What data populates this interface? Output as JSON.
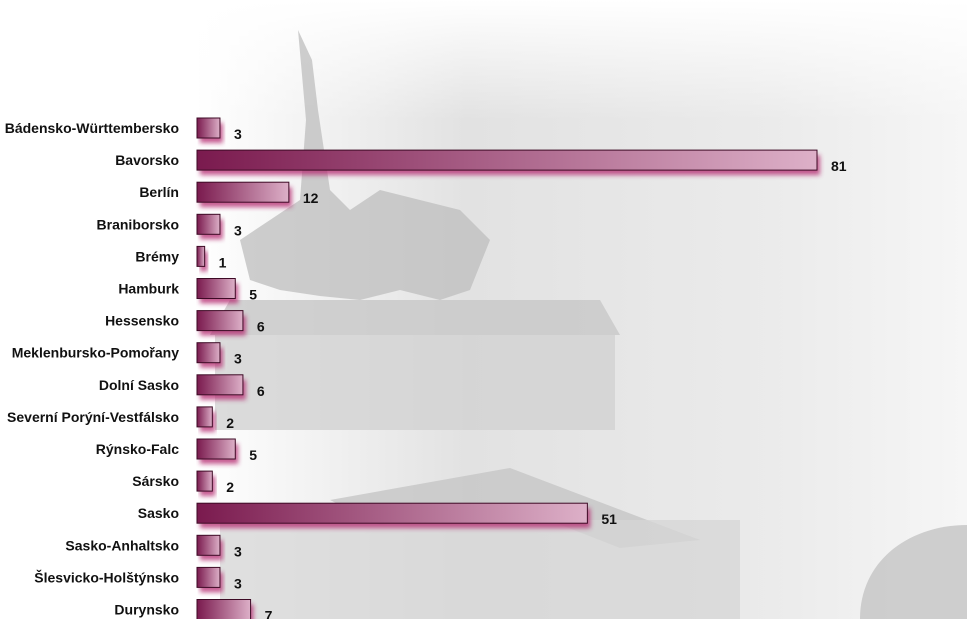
{
  "chart_data": {
    "type": "bar",
    "orientation": "horizontal",
    "categories": [
      "Bádensko-Württembersko",
      "Bavorsko",
      "Berlín",
      "Braniborsko",
      "Brémy",
      "Hamburk",
      "Hessensko",
      "Meklenbursko-Pomořany",
      "Dolní Sasko",
      "Severní Porýní-Vestfálsko",
      "Rýnsko-Falc",
      "Sársko",
      "Sasko",
      "Sasko-Anhaltsko",
      "Šlesvicko-Holštýnsko",
      "Durynsko"
    ],
    "values": [
      3,
      81,
      12,
      3,
      1,
      5,
      6,
      3,
      6,
      2,
      5,
      2,
      51,
      3,
      3,
      7
    ],
    "title": "",
    "xlabel": "",
    "ylabel": "",
    "xlim": [
      0,
      81
    ],
    "grid": false,
    "legend": "none",
    "data_labels": true,
    "colors": {
      "bar_dark": "#7a1a4e",
      "bar_light": "#ddb0c8",
      "bar_shadow": "#b4266e",
      "label_text": "#111111",
      "background_photo": "#cfcfcf"
    }
  }
}
